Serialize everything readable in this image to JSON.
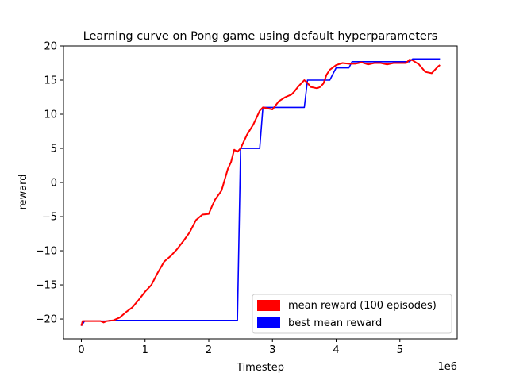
{
  "chart_data": {
    "type": "line",
    "title": "Learning curve on Pong game using default hyperparameters",
    "xlabel": "Timestep",
    "ylabel": "reward",
    "x_offset_label": "1e6",
    "xlim": [
      -0.28,
      5.9
    ],
    "ylim": [
      -22.9,
      20
    ],
    "x_ticks": [
      0,
      1,
      2,
      3,
      4,
      5
    ],
    "x_tick_labels": [
      "0",
      "1",
      "2",
      "3",
      "4",
      "5"
    ],
    "y_ticks": [
      -20,
      -15,
      -10,
      -5,
      0,
      5,
      10,
      15,
      20
    ],
    "y_tick_labels": [
      "−20",
      "−15",
      "−10",
      "−5",
      "0",
      "5",
      "10",
      "15",
      "20"
    ],
    "grid": false,
    "legend_position": "lower-right",
    "series": [
      {
        "name": "mean reward (100 episodes)",
        "color": "#ff0000",
        "x": [
          0,
          0.02,
          0.1,
          0.2,
          0.3,
          0.35,
          0.4,
          0.5,
          0.6,
          0.7,
          0.8,
          0.9,
          1.0,
          1.1,
          1.2,
          1.3,
          1.4,
          1.5,
          1.6,
          1.7,
          1.8,
          1.9,
          2.0,
          2.05,
          2.1,
          2.2,
          2.3,
          2.35,
          2.4,
          2.45,
          2.5,
          2.55,
          2.6,
          2.7,
          2.8,
          2.85,
          2.9,
          2.95,
          3.0,
          3.1,
          3.2,
          3.3,
          3.35,
          3.4,
          3.5,
          3.55,
          3.6,
          3.7,
          3.75,
          3.8,
          3.85,
          3.9,
          4.0,
          4.1,
          4.2,
          4.3,
          4.4,
          4.5,
          4.6,
          4.7,
          4.8,
          4.9,
          5.0,
          5.1,
          5.15,
          5.2,
          5.3,
          5.4,
          5.5,
          5.6,
          5.63
        ],
        "y": [
          -21.0,
          -20.3,
          -20.3,
          -20.3,
          -20.3,
          -20.5,
          -20.3,
          -20.2,
          -19.8,
          -19.0,
          -18.3,
          -17.2,
          -16.0,
          -15.0,
          -13.2,
          -11.6,
          -10.8,
          -9.8,
          -8.6,
          -7.3,
          -5.5,
          -4.7,
          -4.6,
          -3.5,
          -2.5,
          -1.2,
          2.0,
          3.0,
          4.8,
          4.5,
          5.0,
          6.0,
          7.0,
          8.5,
          10.5,
          11.0,
          10.9,
          10.8,
          10.7,
          11.9,
          12.5,
          12.9,
          13.4,
          14.0,
          15.0,
          14.6,
          14.0,
          13.8,
          14.0,
          14.5,
          15.8,
          16.5,
          17.2,
          17.5,
          17.4,
          17.4,
          17.6,
          17.3,
          17.5,
          17.5,
          17.3,
          17.5,
          17.5,
          17.5,
          18.0,
          17.9,
          17.3,
          16.2,
          16.0,
          17.0,
          17.2
        ]
      },
      {
        "name": "best mean reward",
        "color": "#0000ff",
        "x": [
          0,
          0.05,
          0.4,
          0.45,
          2.45,
          2.5,
          2.8,
          2.85,
          3.5,
          3.55,
          3.9,
          4.0,
          4.2,
          4.25,
          5.15,
          5.2,
          5.63
        ],
        "y": [
          -21.0,
          -20.3,
          -20.3,
          -20.2,
          -20.2,
          5.0,
          5.0,
          11.0,
          11.0,
          15.0,
          15.0,
          16.8,
          16.8,
          17.7,
          17.7,
          18.1,
          18.1
        ]
      }
    ]
  }
}
